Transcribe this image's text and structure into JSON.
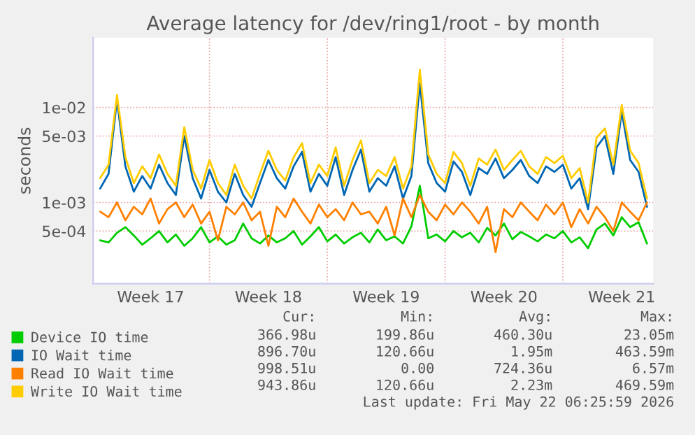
{
  "chart_data": {
    "type": "line",
    "title": "Average latency for /dev/ring1/root - by month",
    "ylabel": "seconds",
    "x": [
      "2026-04-20T12:00",
      "2026-04-21",
      "2026-04-21T12:00",
      "2026-04-22",
      "2026-04-22T12:00",
      "2026-04-23",
      "2026-04-23T12:00",
      "2026-04-24",
      "2026-04-24T12:00",
      "2026-04-25",
      "2026-04-25T12:00",
      "2026-04-26",
      "2026-04-26T12:00",
      "2026-04-27",
      "2026-04-27T12:00",
      "2026-04-28",
      "2026-04-28T12:00",
      "2026-04-29",
      "2026-04-29T12:00",
      "2026-04-30",
      "2026-04-30T12:00",
      "2026-05-01",
      "2026-05-01T12:00",
      "2026-05-02",
      "2026-05-02T12:00",
      "2026-05-03",
      "2026-05-03T12:00",
      "2026-05-04",
      "2026-05-04T12:00",
      "2026-05-05",
      "2026-05-05T12:00",
      "2026-05-06",
      "2026-05-06T12:00",
      "2026-05-07",
      "2026-05-07T12:00",
      "2026-05-08",
      "2026-05-08T12:00",
      "2026-05-09",
      "2026-05-09T12:00",
      "2026-05-10",
      "2026-05-10T12:00",
      "2026-05-11",
      "2026-05-11T12:00",
      "2026-05-12",
      "2026-05-12T12:00",
      "2026-05-13",
      "2026-05-13T12:00",
      "2026-05-14",
      "2026-05-14T12:00",
      "2026-05-15",
      "2026-05-15T12:00",
      "2026-05-16",
      "2026-05-16T12:00",
      "2026-05-17",
      "2026-05-17T12:00",
      "2026-05-18",
      "2026-05-18T12:00",
      "2026-05-19",
      "2026-05-19T12:00",
      "2026-05-20",
      "2026-05-20T12:00",
      "2026-05-21",
      "2026-05-21T12:00",
      "2026-05-22",
      "2026-05-22T12:00",
      "2026-05-23"
    ],
    "series": [
      {
        "name": "Device IO time",
        "color": "#00cc00",
        "values": [
          0.0004,
          0.00038,
          0.00048,
          0.00055,
          0.00045,
          0.00036,
          0.00042,
          0.0005,
          0.00038,
          0.00046,
          0.00035,
          0.00042,
          0.00055,
          0.00038,
          0.00044,
          0.00036,
          0.0004,
          0.0006,
          0.00042,
          0.00037,
          0.00045,
          0.00038,
          0.00042,
          0.0005,
          0.00036,
          0.00044,
          0.00055,
          0.00039,
          0.00046,
          0.00037,
          0.00043,
          0.00048,
          0.00038,
          0.00052,
          0.0004,
          0.00044,
          0.00037,
          0.00056,
          0.0015,
          0.00042,
          0.00046,
          0.00039,
          0.0005,
          0.00043,
          0.00048,
          0.00038,
          0.00054,
          0.00045,
          0.0006,
          0.00041,
          0.00049,
          0.00044,
          0.00039,
          0.00046,
          0.00042,
          0.0005,
          0.00038,
          0.00043,
          0.00033,
          0.00052,
          0.0006,
          0.00045,
          0.0007,
          0.00055,
          0.00062,
          0.00037
        ]
      },
      {
        "name": "IO Wait time",
        "color": "#0066b3",
        "values": [
          0.0014,
          0.002,
          0.012,
          0.0024,
          0.0013,
          0.0019,
          0.0014,
          0.0025,
          0.0016,
          0.0012,
          0.005,
          0.0018,
          0.0011,
          0.0022,
          0.0013,
          0.001,
          0.002,
          0.0012,
          0.0009,
          0.0016,
          0.0028,
          0.0018,
          0.0014,
          0.0024,
          0.0034,
          0.0013,
          0.002,
          0.0015,
          0.003,
          0.0012,
          0.0022,
          0.0036,
          0.0013,
          0.0018,
          0.0015,
          0.0024,
          0.0011,
          0.0019,
          0.018,
          0.0026,
          0.0016,
          0.0013,
          0.0027,
          0.0021,
          0.0012,
          0.0023,
          0.002,
          0.0029,
          0.0018,
          0.0022,
          0.0028,
          0.0019,
          0.0016,
          0.0024,
          0.0021,
          0.0025,
          0.0014,
          0.0018,
          0.00085,
          0.0038,
          0.005,
          0.002,
          0.009,
          0.0028,
          0.0021,
          0.0009
        ]
      },
      {
        "name": "Read IO Wait time",
        "color": "#ff8000",
        "values": [
          0.0008,
          0.0007,
          0.001,
          0.00065,
          0.0009,
          0.00075,
          0.0011,
          0.0006,
          0.00085,
          0.001,
          0.0007,
          0.00095,
          0.0006,
          0.0008,
          0.0004,
          0.0009,
          0.00075,
          0.001,
          0.00065,
          0.0008,
          0.00035,
          0.0009,
          0.0007,
          0.0011,
          0.0008,
          0.0006,
          0.00095,
          0.0007,
          0.00085,
          0.00065,
          0.001,
          0.00075,
          0.0008,
          0.0006,
          0.0009,
          0.00045,
          0.0011,
          0.0007,
          0.0012,
          0.0008,
          0.00065,
          0.00095,
          0.00075,
          0.001,
          0.0008,
          0.0006,
          0.0009,
          0.0003,
          0.00085,
          0.0007,
          0.001,
          0.0008,
          0.00065,
          0.00095,
          0.00075,
          0.001,
          0.00055,
          0.00085,
          0.0006,
          0.0009,
          0.0007,
          0.0005,
          0.001,
          0.0008,
          0.00065,
          0.001
        ]
      },
      {
        "name": "Write IO Wait time",
        "color": "#ffcc00",
        "values": [
          0.0018,
          0.0025,
          0.0135,
          0.003,
          0.0016,
          0.0024,
          0.0018,
          0.0032,
          0.002,
          0.0015,
          0.0062,
          0.0022,
          0.0014,
          0.0028,
          0.0016,
          0.0012,
          0.0025,
          0.0015,
          0.0011,
          0.002,
          0.0035,
          0.0022,
          0.0017,
          0.003,
          0.0042,
          0.0016,
          0.0025,
          0.0019,
          0.0038,
          0.0015,
          0.0028,
          0.0045,
          0.0016,
          0.0022,
          0.0019,
          0.003,
          0.0014,
          0.0024,
          0.025,
          0.0032,
          0.002,
          0.0016,
          0.0034,
          0.0026,
          0.0015,
          0.0029,
          0.0025,
          0.0036,
          0.0022,
          0.0028,
          0.0035,
          0.0024,
          0.002,
          0.003,
          0.0026,
          0.0031,
          0.0018,
          0.0023,
          0.001,
          0.0048,
          0.006,
          0.0025,
          0.0106,
          0.0035,
          0.0026,
          0.0011
        ]
      }
    ],
    "log": true,
    "ylim": [
      0.00014,
      0.054
    ],
    "yticks": [
      {
        "value": 0.0005,
        "label": "5e-04"
      },
      {
        "value": 0.001,
        "label": "1e-03"
      },
      {
        "value": 0.005,
        "label": "5e-03"
      },
      {
        "value": 0.01,
        "label": "1e-02"
      }
    ],
    "xlim": [
      "2026-04-20T02:00",
      "2026-05-23T09:00"
    ],
    "xticks": [
      {
        "value": "2026-04-23T12:00",
        "label": "Week 17"
      },
      {
        "value": "2026-04-27",
        "label": null
      },
      {
        "value": "2026-04-30T12:00",
        "label": "Week 18"
      },
      {
        "value": "2026-05-04",
        "label": null
      },
      {
        "value": "2026-05-07T12:00",
        "label": "Week 19"
      },
      {
        "value": "2026-05-11",
        "label": null
      },
      {
        "value": "2026-05-14T12:00",
        "label": "Week 20"
      },
      {
        "value": "2026-05-18",
        "label": null
      },
      {
        "value": "2026-05-21T12:00",
        "label": "Week 21"
      }
    ],
    "grid": true,
    "legend": "bottom",
    "line_style": "solid",
    "marker": "none",
    "annotations": [
      "Cur:",
      "Min:",
      "Avg:",
      "Max:",
      "366.98u",
      "199.86u",
      "460.30u",
      "23.05m",
      "896.70u",
      "120.66u",
      "1.95m",
      "463.59m",
      "998.51u",
      "0.00",
      "724.36u",
      "6.57m",
      "943.86u",
      "120.66u",
      "2.23m",
      "469.59m",
      "Last update: Fri May 22 06:25:59 2026"
    ]
  }
}
